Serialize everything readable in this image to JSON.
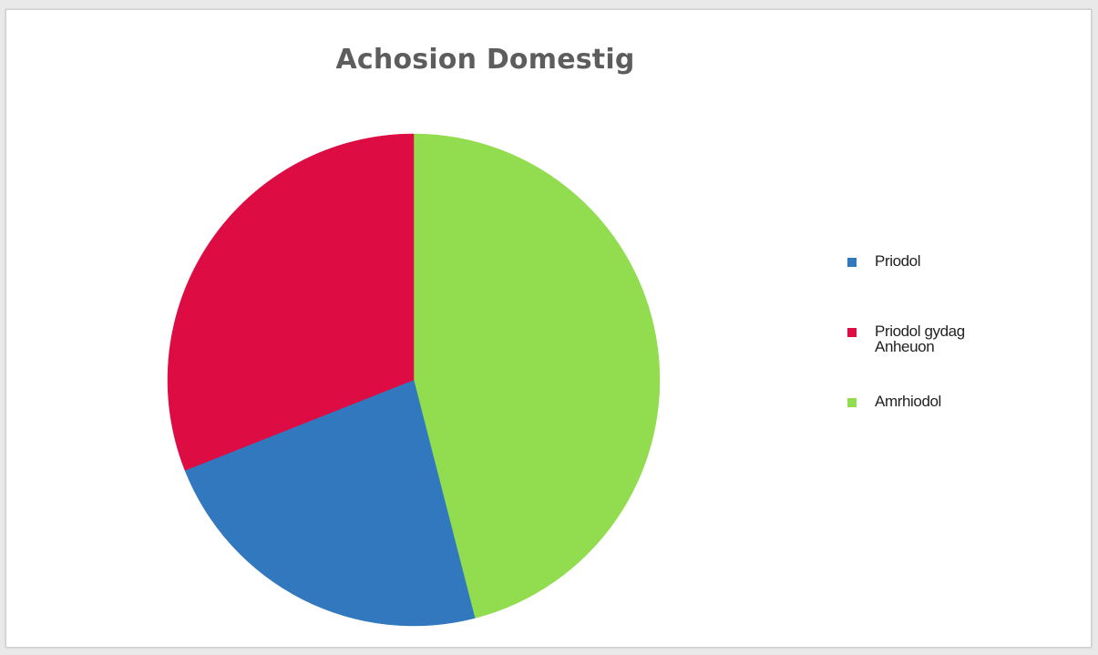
{
  "chart_data": {
    "type": "pie",
    "title": "Achosion Domestig",
    "series": [
      {
        "name": "Priodol",
        "value": 23,
        "color": "#3278be"
      },
      {
        "name": "Priodol gydag Anheuon",
        "value": 31,
        "color": "#dd0c43"
      },
      {
        "name": "Amrhiodol",
        "value": 46,
        "color": "#92dc4f"
      }
    ],
    "legend_position": "right"
  }
}
